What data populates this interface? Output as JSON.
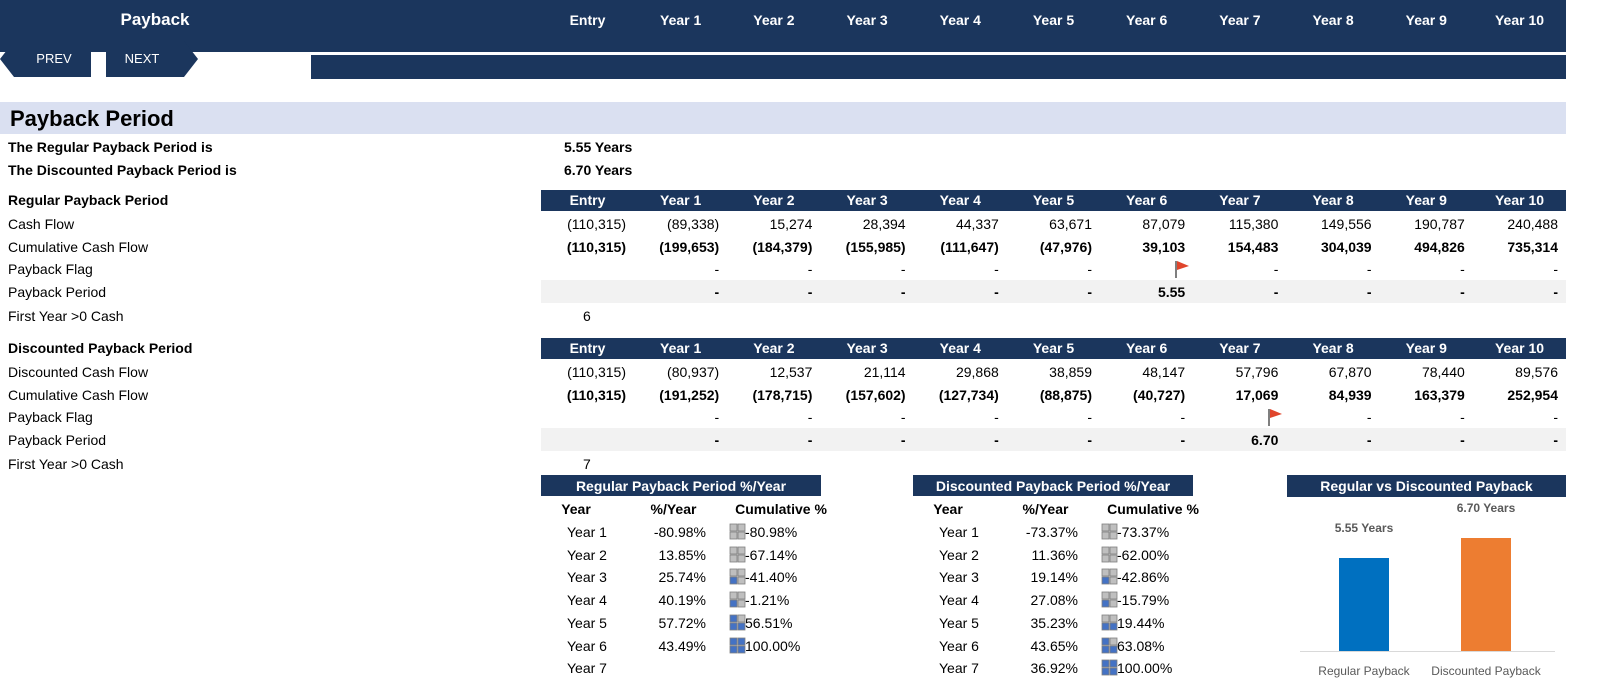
{
  "header": {
    "title": "Payback",
    "columns": [
      "Entry",
      "Year 1",
      "Year 2",
      "Year 3",
      "Year 4",
      "Year 5",
      "Year 6",
      "Year 7",
      "Year 8",
      "Year 9",
      "Year 10"
    ]
  },
  "nav": {
    "prev": "PREV",
    "next": "NEXT"
  },
  "section_title": "Payback Period",
  "summary": [
    {
      "label": "The Regular Payback Period is",
      "value": "5.55 Years"
    },
    {
      "label": "The Discounted Payback Period is",
      "value": "6.70 Years"
    }
  ],
  "regular": {
    "title": "Regular Payback Period",
    "columns": [
      "Entry",
      "Year 1",
      "Year 2",
      "Year 3",
      "Year 4",
      "Year 5",
      "Year 6",
      "Year 7",
      "Year 8",
      "Year 9",
      "Year 10"
    ],
    "rows": [
      {
        "label": "Cash Flow",
        "cells": [
          "(110,315)",
          "(89,338)",
          "15,274",
          "28,394",
          "44,337",
          "63,671",
          "87,079",
          "115,380",
          "149,556",
          "190,787",
          "240,488"
        ]
      },
      {
        "label": "Cumulative Cash Flow",
        "cells": [
          "(110,315)",
          "(199,653)",
          "(184,379)",
          "(155,985)",
          "(111,647)",
          "(47,976)",
          "39,103",
          "154,483",
          "304,039",
          "494,826",
          "735,314"
        ]
      },
      {
        "label": "Payback Flag",
        "cells": [
          null,
          "-",
          "-",
          "-",
          "-",
          "-",
          null,
          "-",
          "-",
          "-",
          "-"
        ]
      },
      {
        "label": "Payback Period",
        "cells": [
          null,
          "-",
          "-",
          "-",
          "-",
          "-",
          "5.55",
          "-",
          "-",
          "-",
          "-"
        ]
      }
    ],
    "first_year_label": "First Year >0 Cash",
    "first_year": 6
  },
  "discounted": {
    "title": "Discounted Payback Period",
    "columns": [
      "Entry",
      "Year 1",
      "Year 2",
      "Year 3",
      "Year 4",
      "Year 5",
      "Year 6",
      "Year 7",
      "Year 8",
      "Year 9",
      "Year 10"
    ],
    "rows": [
      {
        "label": "Discounted Cash Flow",
        "cells": [
          "(110,315)",
          "(80,937)",
          "12,537",
          "21,114",
          "29,868",
          "38,859",
          "48,147",
          "57,796",
          "67,870",
          "78,440",
          "89,576"
        ]
      },
      {
        "label": "Cumulative Cash Flow",
        "cells": [
          "(110,315)",
          "(191,252)",
          "(178,715)",
          "(157,602)",
          "(127,734)",
          "(88,875)",
          "(40,727)",
          "17,069",
          "84,939",
          "163,379",
          "252,954"
        ]
      },
      {
        "label": "Payback Flag",
        "cells": [
          null,
          "-",
          "-",
          "-",
          "-",
          "-",
          "-",
          null,
          "-",
          "-",
          "-"
        ]
      },
      {
        "label": "Payback Period",
        "cells": [
          null,
          "-",
          "-",
          "-",
          "-",
          "-",
          "-",
          "6.70",
          "-",
          "-",
          "-"
        ]
      }
    ],
    "first_year_label": "First Year >0 Cash",
    "first_year": 7
  },
  "pct_tables": [
    {
      "title": "Regular Payback Period %/Year",
      "columns": [
        "Year",
        "%/Year",
        "Cumulative %"
      ],
      "rows": [
        [
          "Year 1",
          "-80.98%",
          "-80.98%"
        ],
        [
          "Year 2",
          "13.85%",
          "-67.14%"
        ],
        [
          "Year 3",
          "25.74%",
          "-41.40%"
        ],
        [
          "Year 4",
          "40.19%",
          "-1.21%"
        ],
        [
          "Year 5",
          "57.72%",
          "56.51%"
        ],
        [
          "Year 6",
          "43.49%",
          "100.00%"
        ],
        [
          "Year 7",
          null,
          null
        ]
      ]
    },
    {
      "title": "Discounted Payback Period %/Year",
      "columns": [
        "Year",
        "%/Year",
        "Cumulative %"
      ],
      "rows": [
        [
          "Year 1",
          "-73.37%",
          "-73.37%"
        ],
        [
          "Year 2",
          "11.36%",
          "-62.00%"
        ],
        [
          "Year 3",
          "19.14%",
          "-42.86%"
        ],
        [
          "Year 4",
          "27.08%",
          "-15.79%"
        ],
        [
          "Year 5",
          "35.23%",
          "19.44%"
        ],
        [
          "Year 6",
          "43.65%",
          "63.08%"
        ],
        [
          "Year 7",
          "36.92%",
          "100.00%"
        ]
      ]
    }
  ],
  "chart_data": {
    "type": "bar",
    "title": "Regular vs Discounted Payback",
    "categories": [
      "Regular Payback",
      "Discounted Payback"
    ],
    "values": [
      5.55,
      6.7
    ],
    "value_labels": [
      "5.55 Years",
      "6.70 Years"
    ],
    "colors": [
      "#0070c0",
      "#ed7d31"
    ]
  }
}
